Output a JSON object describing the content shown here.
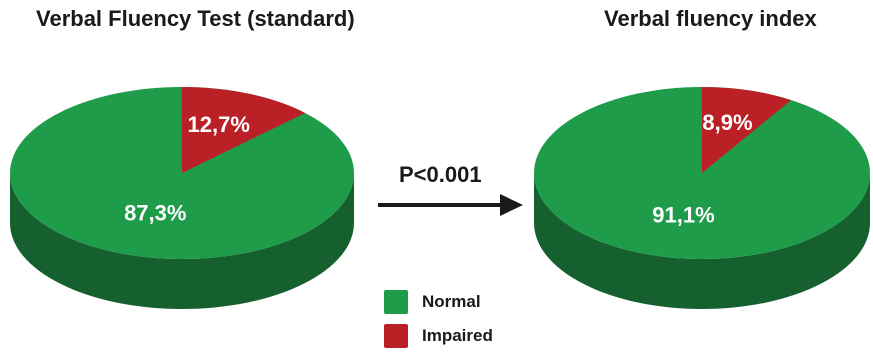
{
  "colors": {
    "normal": "#1e9c4a",
    "normal_side": "#15602e",
    "impaired": "#bb2026",
    "impaired_side": "#7d1418",
    "text": "#1a1a1a"
  },
  "annotation": {
    "p_value": "P<0.001"
  },
  "legend": {
    "normal_label": "Normal",
    "impaired_label": "Impaired"
  },
  "chart_data": [
    {
      "type": "pie",
      "title": "Verbal Fluency Test (standard)",
      "categories": [
        "Normal",
        "Impaired"
      ],
      "values": [
        87.3,
        12.7
      ],
      "labels": [
        "87,3%",
        "12,7%"
      ]
    },
    {
      "type": "pie",
      "title": "Verbal fluency index",
      "categories": [
        "Normal",
        "Impaired"
      ],
      "values": [
        91.1,
        8.9
      ],
      "labels": [
        "91,1%",
        "8,9%"
      ]
    }
  ]
}
